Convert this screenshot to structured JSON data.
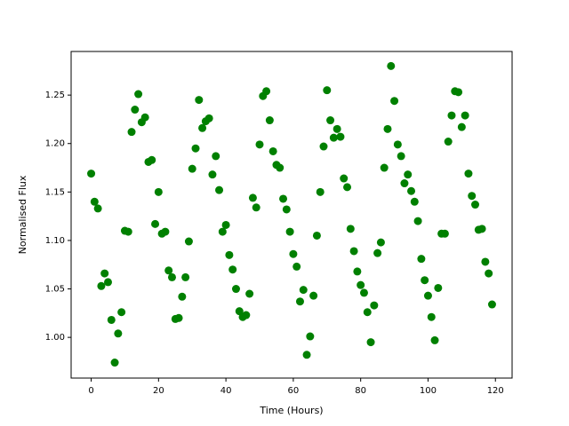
{
  "chart_data": {
    "type": "scatter",
    "xlabel": "Time (Hours)",
    "ylabel": "Normalised Flux",
    "color": "#008000",
    "x": [
      0,
      1,
      2,
      3,
      4,
      5,
      6,
      7,
      8,
      9,
      10,
      11,
      12,
      13,
      14,
      15,
      16,
      17,
      18,
      19,
      20,
      21,
      22,
      23,
      24,
      25,
      26,
      27,
      28,
      29,
      30,
      31,
      32,
      33,
      34,
      35,
      36,
      37,
      38,
      39,
      40,
      41,
      42,
      43,
      44,
      45,
      46,
      47,
      48,
      49,
      50,
      51,
      52,
      53,
      54,
      55,
      56,
      57,
      58,
      59,
      60,
      61,
      62,
      63,
      64,
      65,
      66,
      67,
      68,
      69,
      70,
      71,
      72,
      73,
      74,
      75,
      76,
      77,
      78,
      79,
      80,
      81,
      82,
      83,
      84,
      85,
      86,
      87,
      88,
      89,
      90,
      91,
      92,
      93,
      94,
      95,
      96,
      97,
      98,
      99,
      100,
      101,
      102,
      103,
      104,
      105,
      106,
      107,
      108,
      109,
      110,
      111,
      112,
      113,
      114,
      115,
      116,
      117,
      118,
      119
    ],
    "values": [
      1.169,
      1.14,
      1.133,
      1.053,
      1.066,
      1.057,
      1.018,
      0.974,
      1.004,
      1.026,
      1.11,
      1.109,
      1.212,
      1.235,
      1.251,
      1.222,
      1.227,
      1.181,
      1.183,
      1.117,
      1.15,
      1.107,
      1.109,
      1.069,
      1.062,
      1.019,
      1.02,
      1.042,
      1.062,
      1.099,
      1.174,
      1.195,
      1.245,
      1.216,
      1.223,
      1.226,
      1.168,
      1.187,
      1.152,
      1.109,
      1.116,
      1.085,
      1.07,
      1.05,
      1.027,
      1.021,
      1.023,
      1.045,
      1.144,
      1.134,
      1.199,
      1.249,
      1.254,
      1.224,
      1.192,
      1.178,
      1.175,
      1.143,
      1.132,
      1.109,
      1.086,
      1.073,
      1.037,
      1.049,
      0.982,
      1.001,
      1.043,
      1.105,
      1.15,
      1.197,
      1.255,
      1.224,
      1.206,
      1.215,
      1.207,
      1.164,
      1.155,
      1.112,
      1.089,
      1.068,
      1.054,
      1.046,
      1.026,
      0.995,
      1.033,
      1.087,
      1.098,
      1.175,
      1.215,
      1.28,
      1.244,
      1.199,
      1.187,
      1.159,
      1.168,
      1.151,
      1.14,
      1.12,
      1.081,
      1.059,
      1.043,
      1.021,
      0.997,
      1.051,
      1.107,
      1.107,
      1.202,
      1.229,
      1.254,
      1.253,
      1.217,
      1.229,
      1.169,
      1.146,
      1.137,
      1.111,
      1.112,
      1.078,
      1.066,
      1.034
    ],
    "xlim": [
      -5.95,
      124.95
    ],
    "ylim": [
      0.958,
      1.295
    ],
    "xticks": [
      0,
      20,
      40,
      60,
      80,
      100,
      120
    ],
    "yticks": [
      {
        "value": 1.0,
        "label": "1.00"
      },
      {
        "value": 1.05,
        "label": "1.05"
      },
      {
        "value": 1.1,
        "label": "1.10"
      },
      {
        "value": 1.15,
        "label": "1.15"
      },
      {
        "value": 1.2,
        "label": "1.20"
      },
      {
        "value": 1.25,
        "label": "1.25"
      }
    ],
    "grid": false
  }
}
